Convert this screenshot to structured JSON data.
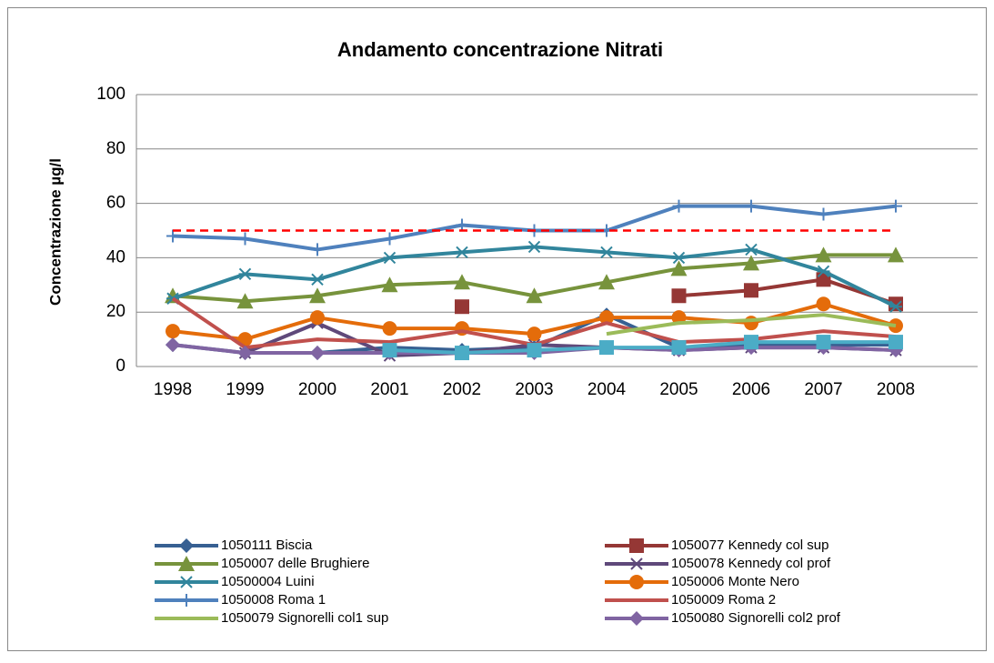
{
  "chart_data": {
    "type": "line",
    "title": "Andamento concentrazione Nitrati",
    "y_label": "Concentrazione µg/l",
    "categories": [
      "1998",
      "1999",
      "2000",
      "2001",
      "2002",
      "2003",
      "2004",
      "2005",
      "2006",
      "2007",
      "2008"
    ],
    "ylim": [
      0,
      100
    ],
    "yticks": [
      0,
      20,
      40,
      60,
      80,
      100
    ],
    "grid": true,
    "reference_line": {
      "value": 50,
      "color": "#ff0000"
    },
    "series": [
      {
        "name": "1050111 Biscia",
        "color": "#376092",
        "marker": "diamond",
        "values": [
          8,
          5,
          5,
          7,
          6,
          7,
          19,
          7,
          8,
          8,
          8
        ]
      },
      {
        "name": "1050077 Kennedy col sup",
        "color": "#953735",
        "marker": "square",
        "values": [
          null,
          null,
          null,
          null,
          22,
          null,
          null,
          26,
          28,
          32,
          23
        ]
      },
      {
        "name": "1050007 delle Brughiere",
        "color": "#77933c",
        "marker": "triangle",
        "values": [
          26,
          24,
          26,
          30,
          31,
          26,
          31,
          36,
          38,
          41,
          41
        ]
      },
      {
        "name": "1050078 Kennedy col prof",
        "color": "#5f497a",
        "marker": "x",
        "values": [
          null,
          5,
          16,
          4,
          5,
          8,
          7,
          6,
          7,
          7,
          6
        ]
      },
      {
        "name": "10500004 Luini",
        "color": "#31859c",
        "marker": "asterisk",
        "values": [
          25,
          34,
          32,
          40,
          42,
          44,
          42,
          40,
          43,
          35,
          22
        ]
      },
      {
        "name": "1050006 Monte Nero",
        "color": "#e46c0a",
        "marker": "circle",
        "values": [
          13,
          10,
          18,
          14,
          14,
          12,
          18,
          18,
          16,
          23,
          15
        ]
      },
      {
        "name": "1050008 Roma 1",
        "color": "#4f81bd",
        "marker": "plus",
        "values": [
          48,
          47,
          43,
          47,
          52,
          50,
          50,
          59,
          59,
          56,
          59
        ]
      },
      {
        "name": "1050009 Roma 2",
        "color": "#c0504d",
        "marker": "none",
        "values": [
          25,
          7,
          10,
          9,
          13,
          8,
          16,
          9,
          10,
          13,
          11
        ]
      },
      {
        "name": "1050079 Signorelli col1 sup",
        "color": "#9bbb59",
        "marker": "none",
        "values": [
          null,
          null,
          null,
          null,
          null,
          null,
          12,
          16,
          17,
          19,
          15
        ]
      },
      {
        "name": "1050080 Signorelli col2 prof",
        "color": "#8064a2",
        "marker": "diamond",
        "values": [
          8,
          5,
          5,
          5,
          5,
          5,
          7,
          6,
          7,
          7,
          6
        ]
      },
      {
        "color": "#4bacc6",
        "marker": "square",
        "values": [
          null,
          null,
          null,
          6,
          5,
          6,
          7,
          7,
          9,
          9,
          9
        ]
      }
    ]
  }
}
